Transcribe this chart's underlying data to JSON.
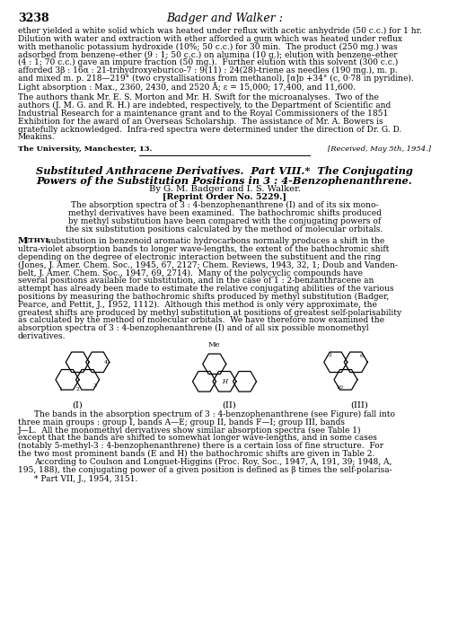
{
  "page_number": "3238",
  "header_title": "Badger and Walker :",
  "background_color": "#ffffff",
  "text_color": "#000000",
  "para1_lines": [
    "ether yielded a white solid which was heated under reflux with acetic anhydride (50 c.c.) for 1 hr.",
    "Dilution with water and extraction with ether afforded a gum which was heated under reflux",
    "with methanolic potassium hydroxide (10%; 50 c.c.) for 30 min.  The product (250 mg.) was",
    "adsorbed from benzene–ether (9 : 1; 50 c.c.) on alumina (10 g.); elution with benzene–ether",
    "(4 : 1; 70 c.c.) gave an impure fraction (50 mg.).  Further elution with this solvent (300 c.c.)",
    "afforded 3β : 16α : 21-trihydroxyeburico-7 : 9(11) : 24(28)-triene as needles (190 mg.), m. p.",
    "and mixed m. p. 218—219° (two crystallisations from methanol), [α]ᴅ +34° (c, 0·78 in pyridine).",
    "Light absorption : Max., 2360, 2430, and 2520 Å; ε = 15,000; 17,400, and 11,600."
  ],
  "para2_lines": [
    "The authors thank Mr. E. S. Morton and Mr. H. Swift for the microanalyses.  Two of the",
    "authors (J. M. G. and R. H.) are indebted, respectively, to the Department of Scientific and",
    "Industrial Research for a maintenance grant and to the Royal Commissioners of the 1851",
    "Exhibition for the award of an Overseas Scholarship.  The assistance of Mr. A. Bowers is",
    "gratefully acknowledged.  Infra-red spectra were determined under the direction of Dr. G. D.",
    "Meakins."
  ],
  "address_left": "The University, Manchester, 13.",
  "address_right": "[Received, May 5th, 1954.]",
  "article_title_line1": "Substituted Anthracene Derivatives.  Part VIII.*  The Conjugating",
  "article_title_line2": "Powers of the Substitution Positions in 3 : 4-Benzophenanthrene.",
  "byline": "By G. M. Badger and I. S. Walker.",
  "reprint": "[Reprint Order No. 5229.]",
  "abstract_lines": [
    "The absorption spectra of 3 : 4-benzophenanthrene (I) and of its six mono-",
    "methyl derivatives have been examined.  The bathochromic shifts produced",
    "by methyl substitution have been compared with the conjugating powers of",
    "the six substitution positions calculated by the method of molecular orbitals."
  ],
  "body1_first": "substitution in benzenoid aromatic hydrocarbons normally produces a shift in the",
  "body1_lines": [
    "ultra-violet absorption bands to longer wave-lengths, the extent of the bathochromic shift",
    "depending on the degree of electronic interaction between the substituent and the ring",
    "(Jones, J. Amer. Chem. Soc., 1945, 67, 2127; Chem. Reviews, 1943, 32, 1; Doub and Vanden-",
    "belt, J. Amer. Chem. Soc., 1947, 69, 2714).  Many of the polycyclic compounds have",
    "several positions available for substitution, and in the case of 1 : 2-benzanthracene an",
    "attempt has already been made to estimate the relative conjugating abilities of the various",
    "positions by measuring the bathochromic shifts produced by methyl substitution (Badger,",
    "Pearce, and Pettit, J., 1952, 1112).  Although this method is only very approximate, the",
    "greatest shifts are produced by methyl substitution at positions of greatest self-polarisability",
    "as calculated by the method of molecular orbitals.  We have therefore now examined the",
    "absorption spectra of 3 : 4-benzophenanthrene (I) and of all six possible monomethyl",
    "derivatives."
  ],
  "body2_lines": [
    "The bands in the absorption spectrum of 3 : 4-benzophenanthrene (see Figure) fall into",
    "three main groups : group I, bands A—E; group II, bands F—I; group III, bands",
    "J—L.  All the monomethyl derivatives show similar absorption spectra (see Table 1)",
    "except that the bands are shifted to somewhat longer wave-lengths, and in some cases",
    "(notably 5-methyl-3 : 4-benzophenanthrene) there is a certain loss of fine structure.  For",
    "the two most prominent bands (E and H) the bathochromic shifts are given in Table 2."
  ],
  "body3_lines": [
    "According to Coulson and Longuet-Higgins (Proc. Roy. Soc., 1947, A, 191, 39; 1948, A,",
    "195, 188), the conjugating power of a given position is defined as β times the self-polarisa-"
  ],
  "footnote": "* Part VII, J., 1954, 3151."
}
